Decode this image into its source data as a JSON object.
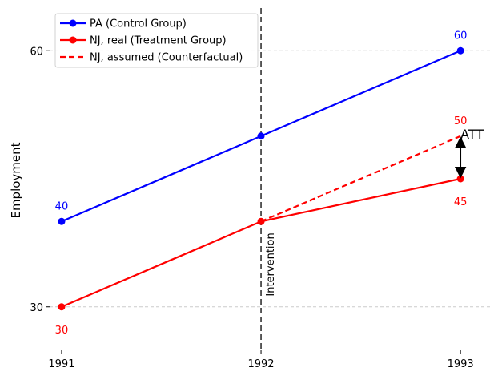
{
  "chart_data": {
    "type": "line",
    "title": "",
    "xlabel": "",
    "ylabel": "Employment",
    "categories": [
      "1991",
      "1992",
      "1993"
    ],
    "x": [
      1991,
      1992,
      1993
    ],
    "yticks": [
      "30",
      "60"
    ],
    "ylim": [
      25,
      65
    ],
    "xlim": [
      1990.94,
      1993.16
    ],
    "grid": {
      "y": true,
      "x": false,
      "style": "dashed"
    },
    "legend_position": "top-left",
    "series": [
      {
        "name": "PA (Control Group)",
        "values": [
          40,
          50,
          60
        ],
        "color": "#0000ff",
        "style": "solid",
        "markers": true,
        "x": [
          1991,
          1992,
          1993
        ]
      },
      {
        "name": "NJ, real (Treatment Group)",
        "values": [
          30,
          40,
          45
        ],
        "color": "#ff0000",
        "style": "solid",
        "markers": true,
        "x": [
          1991,
          1992,
          1993
        ]
      },
      {
        "name": "NJ, assumed (Counterfactual)",
        "values": [
          40,
          50
        ],
        "color": "#ff0000",
        "style": "dashed",
        "markers": false,
        "x": [
          1992,
          1993
        ]
      }
    ],
    "data_labels": [
      {
        "text": "40",
        "x": 1991,
        "y": 40,
        "color": "#0000ff",
        "position": "above"
      },
      {
        "text": "60",
        "x": 1993,
        "y": 60,
        "color": "#0000ff",
        "position": "above"
      },
      {
        "text": "30",
        "x": 1991,
        "y": 30,
        "color": "#ff0000",
        "position": "below"
      },
      {
        "text": "50",
        "x": 1993,
        "y": 50,
        "color": "#ff0000",
        "position": "above"
      },
      {
        "text": "45",
        "x": 1993,
        "y": 45,
        "color": "#ff0000",
        "position": "below"
      }
    ],
    "annotations": {
      "intervention": {
        "x": 1992,
        "label": "Intervention",
        "color": "#333333"
      },
      "att": {
        "label": "ATT",
        "x": 1993,
        "y_from": 45,
        "y_to": 50
      }
    }
  }
}
